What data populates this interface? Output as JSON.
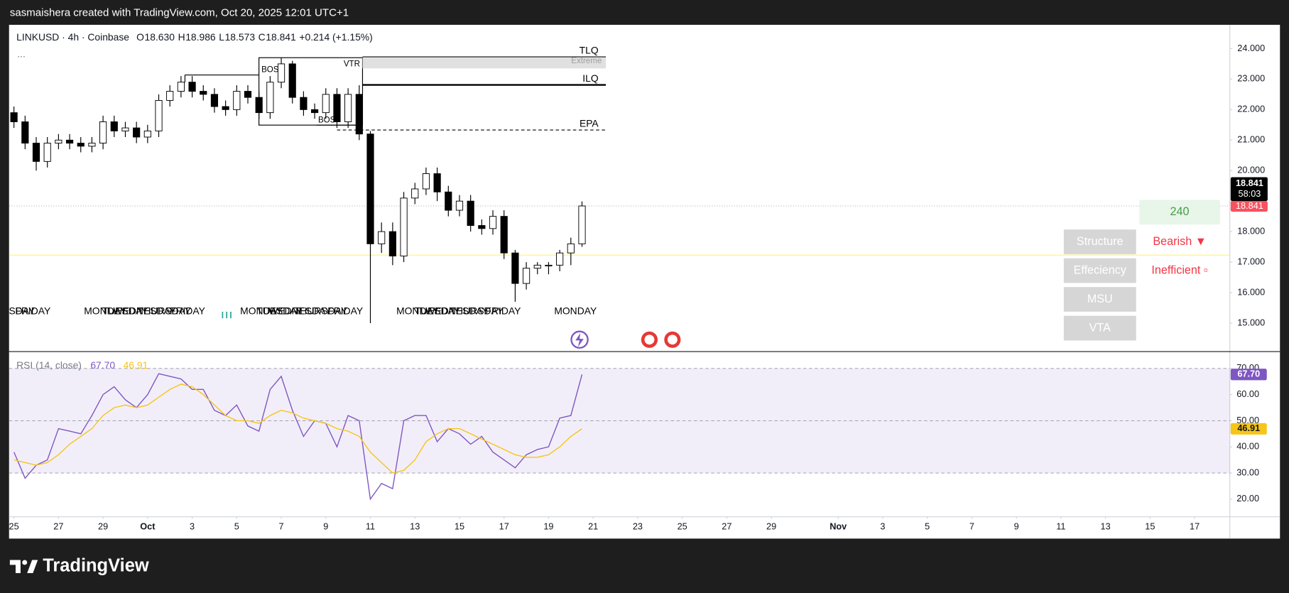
{
  "header": {
    "caption": "sasmaishera created with TradingView.com, Oct 20, 2025 12:01 UTC+1"
  },
  "footer": {
    "brand": "TradingView"
  },
  "chart_data": {
    "type": "candlestick",
    "symbol": "LINKUSD · 4h · Coinbase",
    "legend": {
      "o_label": "O",
      "open": "18.630",
      "h_label": "H",
      "high": "18.986",
      "l_label": "L",
      "low": "18.573",
      "c_label": "C",
      "close": "18.841",
      "change": "+0.214 (+1.15%)",
      "more": "..."
    },
    "xlim": [
      -0.22,
      54.58
    ],
    "xticks": [
      {
        "value": 0,
        "label": "25"
      },
      {
        "value": 2,
        "label": "27"
      },
      {
        "value": 4,
        "label": "29"
      },
      {
        "value": 6,
        "label": "Oct"
      },
      {
        "value": 8,
        "label": "3"
      },
      {
        "value": 10,
        "label": "5"
      },
      {
        "value": 12,
        "label": "7"
      },
      {
        "value": 14,
        "label": "9"
      },
      {
        "value": 16,
        "label": "11"
      },
      {
        "value": 18,
        "label": "13"
      },
      {
        "value": 20,
        "label": "15"
      },
      {
        "value": 22,
        "label": "17"
      },
      {
        "value": 24,
        "label": "19"
      },
      {
        "value": 26,
        "label": "21"
      },
      {
        "value": 28,
        "label": "23"
      },
      {
        "value": 30,
        "label": "25"
      },
      {
        "value": 32,
        "label": "27"
      },
      {
        "value": 34,
        "label": "29"
      },
      {
        "value": 37,
        "label": "Nov"
      },
      {
        "value": 39,
        "label": "3"
      },
      {
        "value": 41,
        "label": "5"
      },
      {
        "value": 43,
        "label": "7"
      },
      {
        "value": 45,
        "label": "9"
      },
      {
        "value": 47,
        "label": "11"
      },
      {
        "value": 49,
        "label": "13"
      },
      {
        "value": 51,
        "label": "15"
      },
      {
        "value": 53,
        "label": "17"
      }
    ],
    "ylim": [
      14.08,
      24.78
    ],
    "yticks": [
      {
        "value": 15,
        "label": "15.000"
      },
      {
        "value": 16,
        "label": "16.000"
      },
      {
        "value": 17,
        "label": "17.000"
      },
      {
        "value": 18,
        "label": "18.000"
      },
      {
        "value": 19,
        "label": "19.000"
      },
      {
        "value": 20,
        "label": "20.000"
      },
      {
        "value": 21,
        "label": "21.000"
      },
      {
        "value": 22,
        "label": "22.000"
      },
      {
        "value": 23,
        "label": "23.000"
      },
      {
        "value": 24,
        "label": "24.000"
      }
    ],
    "candles": {
      "up_color": "#ffffff",
      "down_color": "#000000",
      "x": [
        0,
        0.5,
        1,
        1.5,
        2,
        2.5,
        3,
        3.5,
        4,
        4.5,
        5,
        5.5,
        6,
        6.5,
        7,
        7.5,
        8,
        8.5,
        9,
        9.5,
        10,
        10.5,
        11,
        11.5,
        12,
        12.5,
        13,
        13.5,
        14,
        14.5,
        15,
        15.5,
        16,
        16.5,
        17,
        17.5,
        18,
        18.5,
        19,
        19.5,
        20,
        20.5,
        21,
        21.5,
        22,
        22.5,
        23,
        23.5,
        24,
        24.5,
        25,
        25.5
      ],
      "open": [
        21.9,
        21.6,
        20.9,
        20.3,
        20.9,
        21.0,
        20.9,
        20.8,
        20.9,
        21.6,
        21.3,
        21.4,
        21.1,
        21.3,
        22.3,
        22.6,
        22.9,
        22.6,
        22.5,
        22.1,
        22.0,
        22.6,
        22.4,
        21.9,
        22.9,
        23.5,
        22.4,
        22.0,
        21.9,
        22.5,
        21.6,
        22.5,
        21.2,
        17.6,
        18.0,
        17.2,
        19.1,
        19.4,
        19.9,
        19.3,
        18.7,
        19.0,
        18.2,
        18.1,
        18.5,
        17.3,
        16.3,
        16.8,
        16.9,
        16.9,
        17.3,
        17.6
      ],
      "high": [
        22.1,
        21.8,
        21.1,
        21.1,
        21.2,
        21.2,
        21.1,
        21.1,
        21.8,
        21.8,
        21.6,
        21.6,
        21.5,
        22.5,
        22.8,
        23.1,
        23.1,
        22.8,
        22.7,
        22.3,
        22.8,
        22.8,
        22.6,
        23.1,
        23.7,
        23.6,
        22.6,
        22.2,
        22.7,
        22.7,
        22.7,
        22.8,
        21.3,
        18.3,
        18.3,
        19.3,
        19.6,
        20.1,
        20.1,
        19.5,
        19.2,
        19.2,
        18.4,
        18.7,
        18.7,
        17.4,
        17.0,
        17.0,
        17.0,
        17.4,
        17.8,
        18.99
      ],
      "low": [
        21.4,
        20.7,
        20.0,
        20.1,
        20.7,
        20.7,
        20.6,
        20.6,
        20.7,
        21.1,
        21.1,
        20.9,
        20.9,
        21.1,
        22.1,
        22.4,
        22.4,
        22.3,
        21.9,
        21.8,
        21.8,
        22.2,
        21.7,
        21.7,
        22.7,
        22.2,
        21.8,
        21.7,
        21.7,
        21.4,
        21.4,
        21.0,
        15.0,
        17.3,
        16.9,
        17.0,
        18.9,
        19.2,
        19.0,
        18.5,
        18.5,
        18.0,
        17.9,
        17.9,
        17.1,
        15.7,
        16.1,
        16.6,
        16.6,
        16.7,
        16.9,
        17.5
      ],
      "close": [
        21.6,
        20.9,
        20.3,
        20.9,
        21.0,
        20.9,
        20.8,
        20.9,
        21.6,
        21.3,
        21.4,
        21.1,
        21.3,
        22.3,
        22.6,
        22.9,
        22.6,
        22.5,
        22.1,
        22.0,
        22.6,
        22.4,
        21.9,
        22.9,
        23.5,
        22.4,
        22.0,
        21.9,
        22.5,
        21.6,
        22.5,
        21.2,
        17.6,
        18.0,
        17.2,
        19.1,
        19.4,
        19.9,
        19.3,
        18.7,
        19.0,
        18.2,
        18.1,
        18.5,
        17.3,
        16.3,
        16.8,
        16.9,
        16.9,
        17.3,
        17.6,
        18.841
      ]
    },
    "price_tag": {
      "price": "18.841",
      "countdown": "58:03",
      "color": "#000000",
      "alt_color": "#f7525f"
    },
    "reference_line": {
      "value": 17.23,
      "color": "#fff176"
    },
    "levels": [
      {
        "label": "TLQ",
        "value": 23.73
      },
      {
        "label": "ILQ",
        "value": 22.81
      },
      {
        "label": "EPA",
        "value": 21.33
      }
    ],
    "zone_labels": {
      "vtr": "VTR",
      "extreme": "Extreme",
      "bos": [
        "BOS",
        "BOS"
      ]
    },
    "session_labels": [
      "THURSDAY",
      "FRIDAY",
      "MONDAY",
      "TUESDAY",
      "WEDNESDAY",
      "THURSDAY",
      "FRIDAY",
      "MONDAY",
      "TUESDAY",
      "WEDNESDAY",
      "THURSDAY",
      "FRIDAY",
      "MONDAY",
      "TUESDAY",
      "WEDNESDAY",
      "THURSDAY",
      "FRIDAY",
      "MONDAY"
    ],
    "table": {
      "timeframe": "240",
      "rows": [
        [
          "Structure",
          "Bearish ▼"
        ],
        [
          "Effeciency",
          "Inefficient ▫"
        ],
        [
          "MSU"
        ],
        [
          "VTA"
        ]
      ]
    },
    "rsi": {
      "title": "RSI (14, close)",
      "ylim": [
        13.4,
        76.3
      ],
      "yticks": [
        {
          "value": 20,
          "label": "20.00"
        },
        {
          "value": 30,
          "label": "30.00"
        },
        {
          "value": 40,
          "label": "40.00"
        },
        {
          "value": 50,
          "label": "50.00"
        },
        {
          "value": 60,
          "label": "60.00"
        },
        {
          "value": 70,
          "label": "70.00"
        }
      ],
      "band_levels": [
        70,
        50,
        30
      ],
      "band_color": "#7e57c2",
      "series": [
        {
          "color": "#7e57c2",
          "last_label": "67.70",
          "values": [
            38,
            28,
            33,
            35,
            47,
            46,
            45,
            52,
            60,
            63,
            58,
            55,
            60,
            68,
            67,
            66,
            62,
            62,
            54,
            52,
            56,
            48,
            46,
            62,
            67,
            54,
            44,
            50,
            49,
            40,
            52,
            50,
            20,
            26,
            24,
            50,
            52,
            52,
            42,
            47,
            45,
            41,
            44,
            38,
            35,
            32,
            37,
            39,
            40,
            51,
            52,
            67.7
          ]
        },
        {
          "color": "#f5c518",
          "last_label": "46.91",
          "values": [
            35,
            34,
            33,
            34,
            37,
            41,
            44,
            47,
            52,
            55,
            56,
            55,
            56,
            59,
            62,
            64,
            63,
            60,
            56,
            52,
            50,
            50,
            49,
            52,
            54,
            53,
            51,
            50,
            49,
            47,
            46,
            44,
            38,
            34,
            30,
            31,
            35,
            42,
            45,
            47,
            47,
            45,
            43,
            41,
            39,
            37,
            36,
            36,
            37,
            40,
            44,
            46.91
          ]
        }
      ]
    }
  }
}
